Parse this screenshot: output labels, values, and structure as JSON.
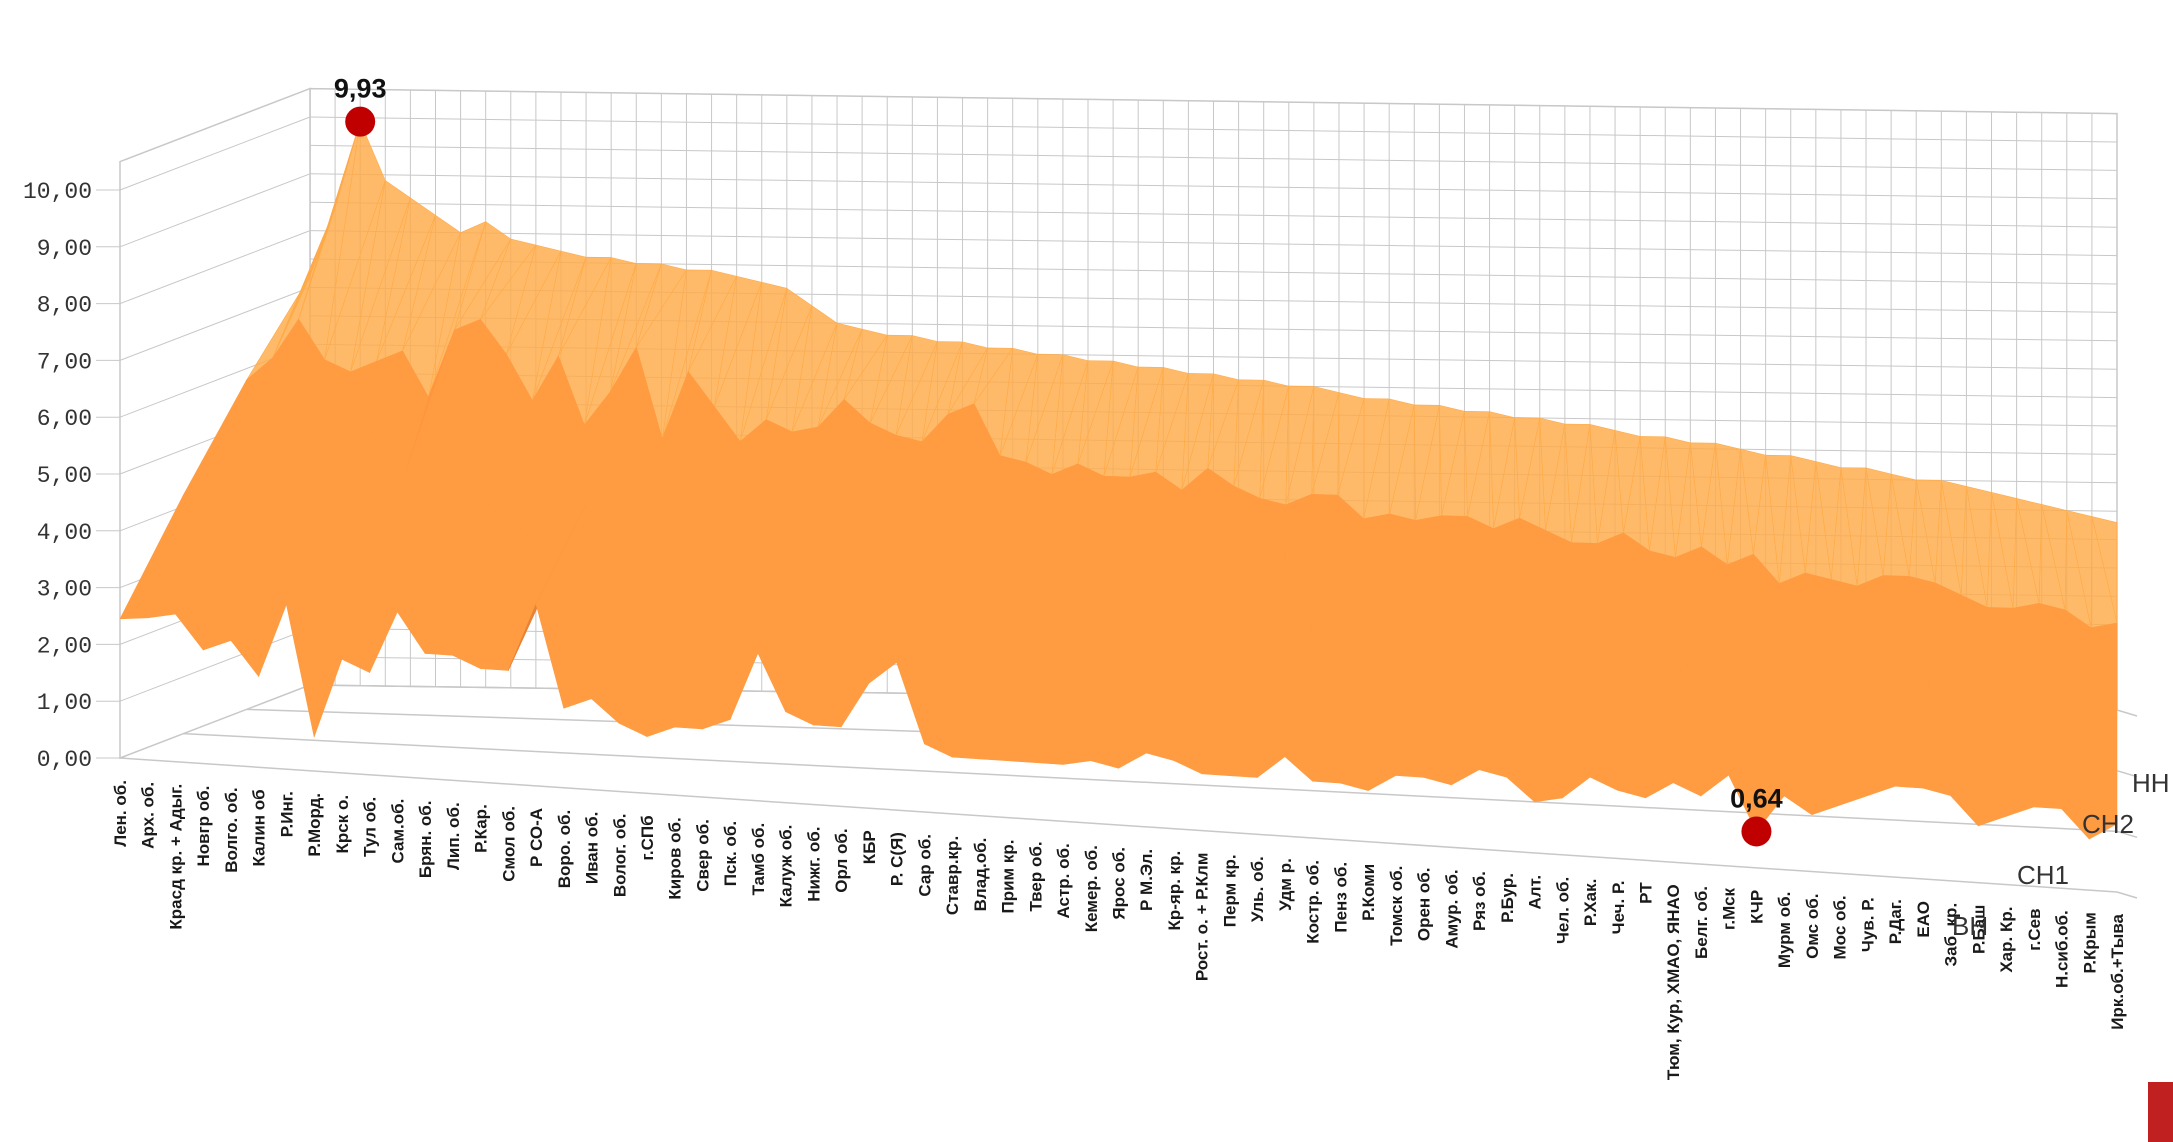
{
  "chart_data": {
    "type": "surface",
    "title": "",
    "xlabel": "",
    "ylabel": "",
    "ylim": [
      0,
      10
    ],
    "yticks": [
      "0,00",
      "1,00",
      "2,00",
      "3,00",
      "4,00",
      "5,00",
      "6,00",
      "7,00",
      "8,00",
      "9,00",
      "10,00"
    ],
    "grid": true,
    "colors": {
      "surface": "#f28a3a",
      "surface_light": "#ffc49a",
      "surface_dark": "#7a3a10",
      "marker": "#c00000",
      "grid": "#c8c8c8"
    },
    "categories": [
      "Лен. об.",
      "Арх. об.",
      "Красд кр. + Адыг.",
      "Новгр об.",
      "Волго. об.",
      "Калин об",
      "Р.Инг.",
      "Р.Морд.",
      "Крск о.",
      "Тул об.",
      "Сам.об.",
      "Брян. об.",
      "Лип. об.",
      "Р.Кар.",
      "Смол об.",
      "Р СО-А",
      "Воро. об.",
      "Иван об.",
      "Волог. об.",
      "г.СПб",
      "Киров об.",
      "Свер об.",
      "Пск. об.",
      "Тамб об.",
      "Калуж об.",
      "Нижг. об.",
      "Орл об.",
      "КБР",
      "Р. С(Я)",
      "Сар об.",
      "Ставр.кр.",
      "Влад.об.",
      "Прим кр.",
      "Твер об.",
      "Астр. об.",
      "Кемер. об.",
      "Ярос об.",
      "Р М.Эл.",
      "Кр-яр. кр.",
      "Рост. о. + Р.Клм",
      "Перм кр.",
      "Уль. об.",
      "Удм р.",
      "Костр. об.",
      "Пенз об.",
      "Р.Коми",
      "Томск об.",
      "Орен об.",
      "Амур. об.",
      "Ряз об.",
      "Р.Бур.",
      "Алт.",
      "Чел. об.",
      "Р.Хак.",
      "Чеч. Р.",
      "РТ",
      "Тюм, Кур, ХМАО, ЯНАО",
      "Белг. об.",
      "г.Мск",
      "КЧР",
      "Мурм об.",
      "Омс об.",
      "Мос об.",
      "Чув. Р.",
      "Р.Даг.",
      "ЕАО",
      "Заб. кр.",
      "Р.Баш",
      "Хар. Кр.",
      "г.Сев",
      "Н.сиб.об.",
      "Р.Крым",
      "Ирк.об.+Тыва"
    ],
    "series": [
      {
        "name": "ВН",
        "values": [
          2.45,
          2.5,
          2.6,
          2.0,
          2.2,
          1.6,
          2.9,
          0.6,
          2.0,
          1.8,
          2.9,
          2.2,
          2.2,
          2.0,
          2.0,
          3.2,
          1.4,
          1.6,
          1.2,
          1.0,
          1.2,
          1.2,
          1.4,
          2.6,
          1.6,
          1.4,
          1.4,
          2.2,
          2.6,
          1.2,
          1.0,
          1.0,
          1.0,
          1.0,
          1.0,
          1.1,
          1.0,
          1.3,
          1.2,
          1.0,
          1.0,
          1.0,
          1.4,
          1.0,
          1.0,
          0.9,
          1.2,
          1.2,
          1.1,
          1.4,
          1.3,
          0.9,
          1.0,
          1.4,
          1.2,
          1.1,
          1.4,
          1.2,
          1.6,
          0.64,
          1.3,
          1.0,
          1.2,
          1.4,
          1.6,
          1.6,
          1.5,
          1.0,
          1.2,
          1.4,
          1.4,
          0.9,
          1.2
        ]
      },
      {
        "name": "СН1",
        "values": [
          4.2,
          4.6,
          4.8,
          4.5,
          4.4,
          4.4,
          4.2,
          4.0,
          4.4,
          4.6,
          4.2,
          3.8,
          4.4,
          3.6,
          3.4,
          4.4,
          3.2,
          4.0,
          3.4,
          3.0,
          3.2,
          3.1,
          3.2,
          3.6,
          3.3,
          3.2,
          3.1,
          3.5,
          3.7,
          3.0,
          2.9,
          2.8,
          2.9,
          2.8,
          2.8,
          2.9,
          2.7,
          3.0,
          2.8,
          2.6,
          2.6,
          2.7,
          2.8,
          2.5,
          2.6,
          2.5,
          2.6,
          2.6,
          2.5,
          2.7,
          2.6,
          2.4,
          2.4,
          2.6,
          2.4,
          2.3,
          2.5,
          2.3,
          2.6,
          2.0,
          2.3,
          2.2,
          2.2,
          2.4,
          2.5,
          2.4,
          2.3,
          2.0,
          2.1,
          2.2,
          2.1,
          1.9,
          2.0
        ]
      },
      {
        "name": "СН2",
        "values": [
          5.8,
          6.2,
          6.9,
          6.2,
          6.0,
          6.2,
          6.4,
          5.6,
          6.8,
          7.0,
          6.4,
          5.6,
          6.4,
          5.2,
          5.8,
          6.6,
          5.0,
          6.2,
          5.6,
          5.0,
          5.4,
          5.2,
          5.3,
          5.8,
          5.4,
          5.2,
          5.1,
          5.6,
          5.8,
          4.9,
          4.8,
          4.6,
          4.8,
          4.6,
          4.6,
          4.7,
          4.4,
          4.8,
          4.5,
          4.3,
          4.2,
          4.4,
          4.4,
          4.0,
          4.1,
          4.0,
          4.1,
          4.1,
          3.9,
          4.1,
          3.9,
          3.7,
          3.7,
          3.9,
          3.6,
          3.5,
          3.7,
          3.4,
          3.6,
          3.1,
          3.3,
          3.2,
          3.1,
          3.3,
          3.3,
          3.2,
          3.0,
          2.8,
          2.8,
          2.9,
          2.8,
          2.5,
          2.6
        ]
      },
      {
        "name": "НН",
        "values": [
          7.2,
          8.4,
          9.93,
          8.9,
          8.6,
          8.3,
          8.0,
          8.2,
          7.9,
          7.8,
          7.7,
          7.6,
          7.6,
          7.5,
          7.5,
          7.4,
          7.4,
          7.3,
          7.2,
          7.1,
          6.8,
          6.5,
          6.4,
          6.3,
          6.3,
          6.2,
          6.2,
          6.1,
          6.1,
          6.0,
          6.0,
          5.9,
          5.9,
          5.8,
          5.8,
          5.7,
          5.7,
          5.6,
          5.6,
          5.5,
          5.5,
          5.4,
          5.3,
          5.3,
          5.2,
          5.2,
          5.1,
          5.1,
          5.0,
          5.0,
          4.9,
          4.9,
          4.8,
          4.7,
          4.7,
          4.6,
          4.6,
          4.5,
          4.4,
          4.4,
          4.3,
          4.2,
          4.2,
          4.1,
          4.0,
          4.0,
          3.9,
          3.8,
          3.7,
          3.6,
          3.5,
          3.4,
          3.3
        ]
      }
    ],
    "annotations": [
      {
        "label": "9,93",
        "series": "НН",
        "category": "Красд кр. + Адыг.",
        "value": 9.93
      },
      {
        "label": "0,64",
        "series": "ВН",
        "category": "КЧР",
        "value": 0.64
      }
    ]
  }
}
